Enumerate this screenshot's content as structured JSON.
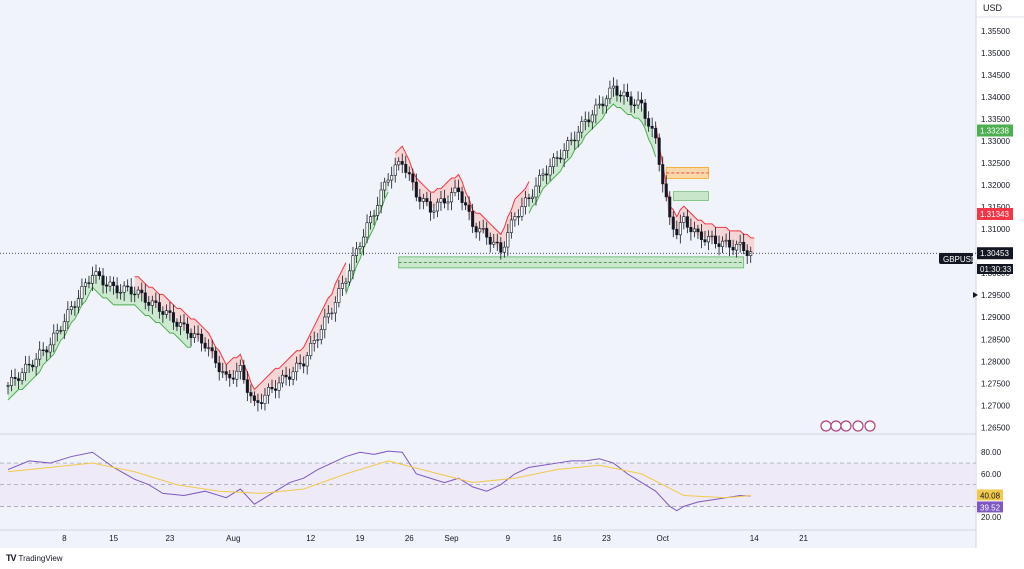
{
  "app": {
    "brand": "TradingView",
    "brand_logo": "TV"
  },
  "currency": "USD",
  "symbol": "GBPUSD",
  "countdown": "01:30:33",
  "colors": {
    "bull_fill": "#c8e6c9",
    "bear_fill": "#f6cfcf",
    "bull_line": "#4caf50",
    "bear_line": "#f23645",
    "candle": "#131722",
    "rsi_line": "#7e57c2",
    "rsi_ma": "#f2c94c",
    "rsi_band": "#ede7f6",
    "support_zone": "#c8e6c9",
    "order_block": "#fbd8a8"
  },
  "chart_data": [
    {
      "type": "line",
      "title": "",
      "description_unit": "USD",
      "y_scale": "linear",
      "ylim": [
        1.2635,
        1.362
      ],
      "price_ticks": [
        "1.35500",
        "1.35000",
        "1.34500",
        "1.34000",
        "1.33500",
        "1.33000",
        "1.32500",
        "1.32000",
        "1.31500",
        "1.31000",
        "1.30500",
        "1.30000",
        "1.29500",
        "1.29000",
        "1.28500",
        "1.28000",
        "1.27500",
        "1.27000",
        "1.26500"
      ],
      "x_tick_labels": [
        "8",
        "15",
        "23",
        "Aug",
        "12",
        "19",
        "26",
        "Sep",
        "9",
        "16",
        "23",
        "Oct",
        "14",
        "21"
      ],
      "x_tick_days": [
        8,
        15,
        23,
        32,
        43,
        50,
        57,
        63,
        71,
        78,
        85,
        93,
        106,
        113
      ],
      "series": [
        {
          "name": "GBPUSD",
          "x_days": [
            0,
            3,
            6,
            9,
            12,
            15,
            18,
            20,
            22,
            25,
            28,
            31,
            33,
            35,
            38,
            40,
            42,
            44,
            46,
            48,
            50,
            52,
            54,
            56,
            58,
            60,
            62,
            64,
            66,
            68,
            70,
            72,
            74,
            76,
            78,
            80,
            82,
            84,
            86,
            88,
            90,
            92,
            94,
            95,
            96,
            98,
            100,
            102,
            104,
            105.5
          ],
          "close": [
            1.2745,
            1.279,
            1.284,
            1.292,
            1.3,
            1.2965,
            1.296,
            1.2935,
            1.2915,
            1.2875,
            1.284,
            1.276,
            1.278,
            1.27,
            1.2745,
            1.277,
            1.28,
            1.286,
            1.292,
            1.299,
            1.307,
            1.314,
            1.322,
            1.3255,
            1.318,
            1.3145,
            1.3165,
            1.319,
            1.311,
            1.3085,
            1.305,
            1.313,
            1.317,
            1.3225,
            1.326,
            1.33,
            1.3345,
            1.338,
            1.342,
            1.3395,
            1.338,
            1.33,
            1.312,
            1.3095,
            1.312,
            1.3085,
            1.3075,
            1.3065,
            1.306,
            1.30453
          ]
        }
      ],
      "supertrend": {
        "bull_segments": [
          [
            0,
            26
          ],
          [
            48,
            54
          ],
          [
            74,
            92
          ]
        ],
        "bear_segments": [
          [
            18,
            48
          ],
          [
            55,
            74
          ],
          [
            92,
            106
          ]
        ]
      },
      "price_levels": [
        {
          "label": "1.33238",
          "value": 1.33238,
          "color": "#4caf50"
        },
        {
          "label": "1.31343",
          "value": 1.31343,
          "color": "#f23645"
        },
        {
          "label": "1.30453",
          "value": 1.30453,
          "color": "#131722"
        }
      ],
      "support_zone": [
        1.3012,
        1.3037
      ],
      "order_block": [
        1.3215,
        1.324
      ]
    },
    {
      "type": "line",
      "name": "RSI",
      "ylim": [
        10,
        95
      ],
      "rsi_ticks": [
        "80.00",
        "60.00",
        "20.00"
      ],
      "band": [
        30,
        70
      ],
      "mid": 50,
      "rsi_ma_value": "40.08",
      "rsi_value": "39.52",
      "series": [
        {
          "name": "RSI",
          "x_days": [
            0,
            3,
            6,
            9,
            12,
            15,
            18,
            20,
            22,
            25,
            28,
            31,
            33,
            35,
            38,
            40,
            42,
            44,
            46,
            48,
            50,
            52,
            54,
            56,
            58,
            60,
            62,
            64,
            66,
            68,
            70,
            72,
            74,
            76,
            78,
            80,
            82,
            84,
            86,
            88,
            90,
            92,
            94,
            95,
            96,
            98,
            100,
            102,
            104,
            105.5
          ],
          "values": [
            64,
            72,
            70,
            76,
            80,
            66,
            55,
            50,
            42,
            40,
            44,
            38,
            46,
            32,
            44,
            52,
            56,
            64,
            70,
            76,
            80,
            78,
            81,
            80,
            60,
            56,
            52,
            56,
            48,
            44,
            50,
            60,
            66,
            68,
            70,
            72,
            72,
            74,
            70,
            60,
            52,
            44,
            30,
            26,
            30,
            34,
            36,
            38,
            40,
            39.52
          ]
        },
        {
          "name": "RSI MA",
          "x_days": [
            0,
            6,
            12,
            18,
            24,
            30,
            36,
            42,
            48,
            54,
            60,
            66,
            72,
            78,
            84,
            90,
            96,
            102,
            105.5
          ],
          "values": [
            62,
            66,
            70,
            62,
            50,
            44,
            42,
            46,
            60,
            72,
            62,
            52,
            56,
            64,
            68,
            60,
            40,
            38,
            40.08
          ]
        }
      ]
    }
  ]
}
